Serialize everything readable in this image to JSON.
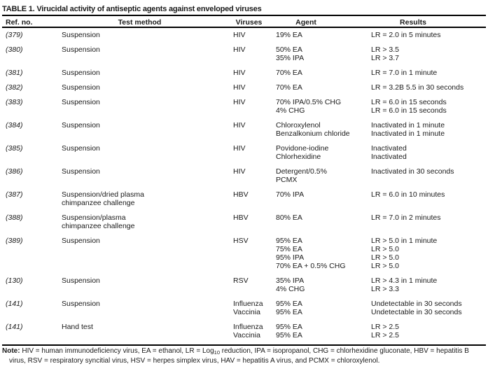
{
  "title": "TABLE 1. Virucidal activity of antiseptic agents against enveloped viruses",
  "table": {
    "columns": [
      "Ref. no.",
      "Test method",
      "Viruses",
      "Agent",
      "Results"
    ],
    "rows": [
      {
        "ref": "(379)",
        "method": [
          "Suspension"
        ],
        "viruses": [
          "HIV"
        ],
        "agents": [
          "19% EA"
        ],
        "results": [
          "LR = 2.0 in 5 minutes"
        ]
      },
      {
        "ref": "(380)",
        "method": [
          "Suspension"
        ],
        "viruses": [
          "HIV"
        ],
        "agents": [
          "50% EA",
          "35% IPA"
        ],
        "results": [
          "LR > 3.5",
          "LR > 3.7"
        ]
      },
      {
        "ref": "(381)",
        "method": [
          "Suspension"
        ],
        "viruses": [
          "HIV"
        ],
        "agents": [
          "70% EA"
        ],
        "results": [
          "LR = 7.0 in 1 minute"
        ]
      },
      {
        "ref": "(382)",
        "method": [
          "Suspension"
        ],
        "viruses": [
          "HIV"
        ],
        "agents": [
          "70% EA"
        ],
        "results": [
          "LR = 3.2B 5.5 in 30 seconds"
        ]
      },
      {
        "ref": "(383)",
        "method": [
          "Suspension"
        ],
        "viruses": [
          "HIV"
        ],
        "agents": [
          "70% IPA/0.5% CHG",
          "4% CHG"
        ],
        "results": [
          "LR = 6.0 in 15 seconds",
          "LR = 6.0 in 15 seconds"
        ]
      },
      {
        "ref": "(384)",
        "method": [
          "Suspension"
        ],
        "viruses": [
          "HIV"
        ],
        "agents": [
          "Chloroxylenol",
          "Benzalkonium chloride"
        ],
        "results": [
          "Inactivated in 1 minute",
          "Inactivated in 1 minute"
        ]
      },
      {
        "ref": "(385)",
        "method": [
          "Suspension"
        ],
        "viruses": [
          "HIV"
        ],
        "agents": [
          "Povidone-iodine",
          "Chlorhexidine"
        ],
        "results": [
          "Inactivated",
          "Inactivated"
        ]
      },
      {
        "ref": "(386)",
        "method": [
          "Suspension"
        ],
        "viruses": [
          "HIV"
        ],
        "agents": [
          "Detergent/0.5%",
          "PCMX"
        ],
        "results": [
          "Inactivated in 30 seconds"
        ]
      },
      {
        "ref": "(387)",
        "method": [
          "Suspension/dried plasma",
          "chimpanzee challenge"
        ],
        "viruses": [
          "HBV"
        ],
        "agents": [
          "70% IPA"
        ],
        "results": [
          "LR = 6.0 in 10 minutes"
        ]
      },
      {
        "ref": "(388)",
        "method": [
          "Suspension/plasma",
          "chimpanzee challenge"
        ],
        "viruses": [
          "HBV"
        ],
        "agents": [
          "80% EA"
        ],
        "results": [
          "LR = 7.0 in 2 minutes"
        ]
      },
      {
        "ref": "(389)",
        "method": [
          "Suspension"
        ],
        "viruses": [
          "HSV"
        ],
        "agents": [
          "95% EA",
          "75% EA",
          "95% IPA",
          "70% EA + 0.5% CHG"
        ],
        "results": [
          "LR > 5.0 in 1 minute",
          "LR > 5.0",
          "LR > 5.0",
          "LR > 5.0"
        ]
      },
      {
        "ref": "(130)",
        "method": [
          "Suspension"
        ],
        "viruses": [
          "RSV"
        ],
        "agents": [
          "35% IPA",
          "4% CHG"
        ],
        "results": [
          "LR > 4.3 in 1 minute",
          "LR > 3.3"
        ]
      },
      {
        "ref": "(141)",
        "method": [
          "Suspension"
        ],
        "viruses": [
          "Influenza",
          "Vaccinia"
        ],
        "agents": [
          "95% EA",
          "95% EA"
        ],
        "results": [
          "Undetectable in 30 seconds",
          "Undetectable in 30 seconds"
        ]
      },
      {
        "ref": "(141)",
        "method": [
          "Hand test"
        ],
        "viruses": [
          "Influenza",
          "Vaccinia"
        ],
        "agents": [
          "95% EA",
          "95% EA"
        ],
        "results": [
          "LR > 2.5",
          "LR > 2.5"
        ]
      }
    ]
  },
  "note": {
    "label": "Note:",
    "line1_pre": " HIV = human immunodeficiency virus, EA = ethanol, LR = Log",
    "line1_sub": "10",
    "line1_post": " reduction, IPA = isopropanol, CHG = chlorhexidine gluconate, HBV = hepatitis B",
    "line2": "virus, RSV = respiratory syncitial virus, HSV = herpes simplex virus, HAV = hepatitis A virus, and PCMX = chloroxylenol."
  }
}
